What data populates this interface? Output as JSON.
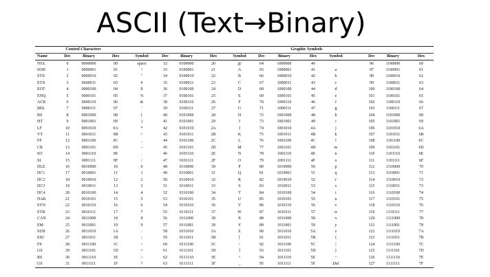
{
  "title": "ASCII (Text→Binary)",
  "table": {
    "group_control": "Control Characters",
    "group_graphic": "Graphic Symbols",
    "headers_control": [
      "Name",
      "Dec",
      "Binary",
      "Hex"
    ],
    "headers_graphic": [
      "Symbol",
      "Dec",
      "Binary",
      "Hex"
    ],
    "control_rows": [
      [
        "NUL",
        "0",
        "0000000",
        "00"
      ],
      [
        "SOH",
        "1",
        "0000001",
        "01"
      ],
      [
        "STX",
        "2",
        "0000010",
        "02"
      ],
      [
        "ETX",
        "3",
        "0000011",
        "03"
      ],
      [
        "EOT",
        "4",
        "0000100",
        "04"
      ],
      [
        "ENQ",
        "5",
        "0000101",
        "05"
      ],
      [
        "ACK",
        "6",
        "0000110",
        "06"
      ],
      [
        "BEL",
        "7",
        "0000111",
        "07"
      ],
      [
        "BS",
        "8",
        "0001000",
        "08"
      ],
      [
        "HT",
        "9",
        "0001001",
        "09"
      ],
      [
        "LF",
        "10",
        "0001010",
        "0A"
      ],
      [
        "VT",
        "11",
        "0001011",
        "0B"
      ],
      [
        "FF",
        "12",
        "0001100",
        "0C"
      ],
      [
        "CR",
        "13",
        "0001101",
        "0D"
      ],
      [
        "SO",
        "14",
        "0001110",
        "0E"
      ],
      [
        "SI",
        "15",
        "0001111",
        "0F"
      ],
      [
        "DLE",
        "16",
        "0010000",
        "10"
      ],
      [
        "DC1",
        "17",
        "0010001",
        "11"
      ],
      [
        "DC2",
        "18",
        "0010010",
        "12"
      ],
      [
        "DC3",
        "19",
        "0010011",
        "13"
      ],
      [
        "DC4",
        "20",
        "0010100",
        "14"
      ],
      [
        "NAK",
        "21",
        "0010101",
        "15"
      ],
      [
        "SYN",
        "22",
        "0010110",
        "16"
      ],
      [
        "ETB",
        "23",
        "0010111",
        "17"
      ],
      [
        "CAN",
        "24",
        "0011000",
        "18"
      ],
      [
        "EM",
        "25",
        "0011001",
        "19"
      ],
      [
        "SUB",
        "26",
        "0011010",
        "1A"
      ],
      [
        "ESC",
        "27",
        "0011011",
        "1B"
      ],
      [
        "FS",
        "28",
        "0011100",
        "1C"
      ],
      [
        "GS",
        "29",
        "0011101",
        "1D"
      ],
      [
        "RS",
        "30",
        "0011110",
        "1E"
      ],
      [
        "US",
        "31",
        "0011111",
        "1F"
      ]
    ],
    "graphic_blocks": [
      [
        [
          "space",
          "32",
          "0100000",
          "20"
        ],
        [
          "!",
          "33",
          "0100001",
          "21"
        ],
        [
          "\"",
          "34",
          "0100010",
          "22"
        ],
        [
          "#",
          "35",
          "0100011",
          "23"
        ],
        [
          "$",
          "36",
          "0100100",
          "24"
        ],
        [
          "%",
          "37",
          "0100101",
          "25"
        ],
        [
          "&",
          "38",
          "0100110",
          "26"
        ],
        [
          "'",
          "39",
          "0100111",
          "27"
        ],
        [
          "(",
          "40",
          "0101000",
          "28"
        ],
        [
          ")",
          "41",
          "0101001",
          "29"
        ],
        [
          "*",
          "42",
          "0101010",
          "2A"
        ],
        [
          "+",
          "43",
          "0101011",
          "2B"
        ],
        [
          ",",
          "44",
          "0101100",
          "2C"
        ],
        [
          "–",
          "45",
          "0101101",
          "2D"
        ],
        [
          ".",
          "46",
          "0101110",
          "2E"
        ],
        [
          "/",
          "47",
          "0101111",
          "2F"
        ],
        [
          "0",
          "48",
          "0110000",
          "30"
        ],
        [
          "1",
          "49",
          "0110001",
          "31"
        ],
        [
          "2",
          "50",
          "0110010",
          "32"
        ],
        [
          "3",
          "51",
          "0110011",
          "33"
        ],
        [
          "4",
          "52",
          "0110100",
          "34"
        ],
        [
          "5",
          "53",
          "0110101",
          "35"
        ],
        [
          "6",
          "54",
          "0110110",
          "36"
        ],
        [
          "7",
          "55",
          "0110111",
          "37"
        ],
        [
          "8",
          "56",
          "0111000",
          "38"
        ],
        [
          "9",
          "57",
          "0111001",
          "39"
        ],
        [
          ":",
          "58",
          "0111010",
          "3A"
        ],
        [
          ";",
          "59",
          "0111011",
          "3B"
        ],
        [
          "<",
          "60",
          "0111100",
          "3C"
        ],
        [
          "=",
          "61",
          "0111101",
          "3D"
        ],
        [
          ">",
          "62",
          "0111110",
          "3E"
        ],
        [
          "?",
          "63",
          "0111111",
          "3F"
        ]
      ],
      [
        [
          "@",
          "64",
          "1000000",
          "40"
        ],
        [
          "A",
          "65",
          "1000001",
          "41"
        ],
        [
          "B",
          "66",
          "1000010",
          "42"
        ],
        [
          "C",
          "67",
          "1000011",
          "43"
        ],
        [
          "D",
          "68",
          "1000100",
          "44"
        ],
        [
          "E",
          "69",
          "1000101",
          "45"
        ],
        [
          "F",
          "70",
          "1000110",
          "46"
        ],
        [
          "G",
          "71",
          "1000111",
          "47"
        ],
        [
          "H",
          "72",
          "1001000",
          "48"
        ],
        [
          "I",
          "73",
          "1001001",
          "49"
        ],
        [
          "J",
          "74",
          "1001010",
          "4A"
        ],
        [
          "K",
          "75",
          "1001011",
          "4B"
        ],
        [
          "L",
          "76",
          "1001100",
          "4C"
        ],
        [
          "M",
          "77",
          "1001101",
          "4D"
        ],
        [
          "N",
          "78",
          "1001110",
          "4E"
        ],
        [
          "O",
          "79",
          "1001111",
          "4F"
        ],
        [
          "P",
          "80",
          "1010000",
          "50"
        ],
        [
          "Q",
          "81",
          "1010001",
          "51"
        ],
        [
          "R",
          "82",
          "1010010",
          "52"
        ],
        [
          "S",
          "83",
          "1010011",
          "53"
        ],
        [
          "T",
          "84",
          "1010100",
          "54"
        ],
        [
          "U",
          "85",
          "1010101",
          "55"
        ],
        [
          "V",
          "86",
          "1010110",
          "56"
        ],
        [
          "W",
          "87",
          "1010111",
          "57"
        ],
        [
          "X",
          "88",
          "1011000",
          "58"
        ],
        [
          "Y",
          "89",
          "1011001",
          "59"
        ],
        [
          "Z",
          "90",
          "1011010",
          "5A"
        ],
        [
          "[",
          "91",
          "1011011",
          "5B"
        ],
        [
          "\\",
          "92",
          "1011100",
          "5C"
        ],
        [
          "]",
          "93",
          "1011101",
          "5D"
        ],
        [
          "^",
          "94",
          "1011110",
          "5E"
        ],
        [
          "_",
          "95",
          "1011111",
          "5F"
        ]
      ],
      [
        [
          "`",
          "96",
          "1100000",
          "60"
        ],
        [
          "a",
          "97",
          "1100001",
          "61"
        ],
        [
          "b",
          "98",
          "1100010",
          "62"
        ],
        [
          "c",
          "99",
          "1100011",
          "63"
        ],
        [
          "d",
          "100",
          "1100100",
          "64"
        ],
        [
          "e",
          "101",
          "1100101",
          "65"
        ],
        [
          "f",
          "102",
          "1100110",
          "66"
        ],
        [
          "g",
          "103",
          "1100111",
          "67"
        ],
        [
          "h",
          "104",
          "1101000",
          "68"
        ],
        [
          "i",
          "105",
          "1101001",
          "69"
        ],
        [
          "j",
          "106",
          "1101010",
          "6A"
        ],
        [
          "k",
          "107",
          "1101011",
          "6B"
        ],
        [
          "l",
          "108",
          "1101100",
          "6C"
        ],
        [
          "m",
          "109",
          "1101101",
          "6D"
        ],
        [
          "n",
          "110",
          "1101110",
          "6E"
        ],
        [
          "o",
          "111",
          "1101111",
          "6F"
        ],
        [
          "p",
          "112",
          "1110000",
          "70"
        ],
        [
          "q",
          "113",
          "1110001",
          "71"
        ],
        [
          "r",
          "114",
          "1110010",
          "72"
        ],
        [
          "s",
          "115",
          "1110011",
          "73"
        ],
        [
          "t",
          "116",
          "1110100",
          "74"
        ],
        [
          "u",
          "117",
          "1110101",
          "75"
        ],
        [
          "v",
          "118",
          "1110110",
          "76"
        ],
        [
          "w",
          "119",
          "1110111",
          "77"
        ],
        [
          "x",
          "120",
          "1111000",
          "78"
        ],
        [
          "y",
          "121",
          "1111001",
          "79"
        ],
        [
          "z",
          "122",
          "1111010",
          "7A"
        ],
        [
          "{",
          "123",
          "1111011",
          "7B"
        ],
        [
          "|",
          "124",
          "1111100",
          "7C"
        ],
        [
          "}",
          "125",
          "1111101",
          "7D"
        ],
        [
          "~",
          "126",
          "1111110",
          "7E"
        ],
        [
          "Del",
          "127",
          "1111111",
          "7F"
        ]
      ]
    ]
  }
}
